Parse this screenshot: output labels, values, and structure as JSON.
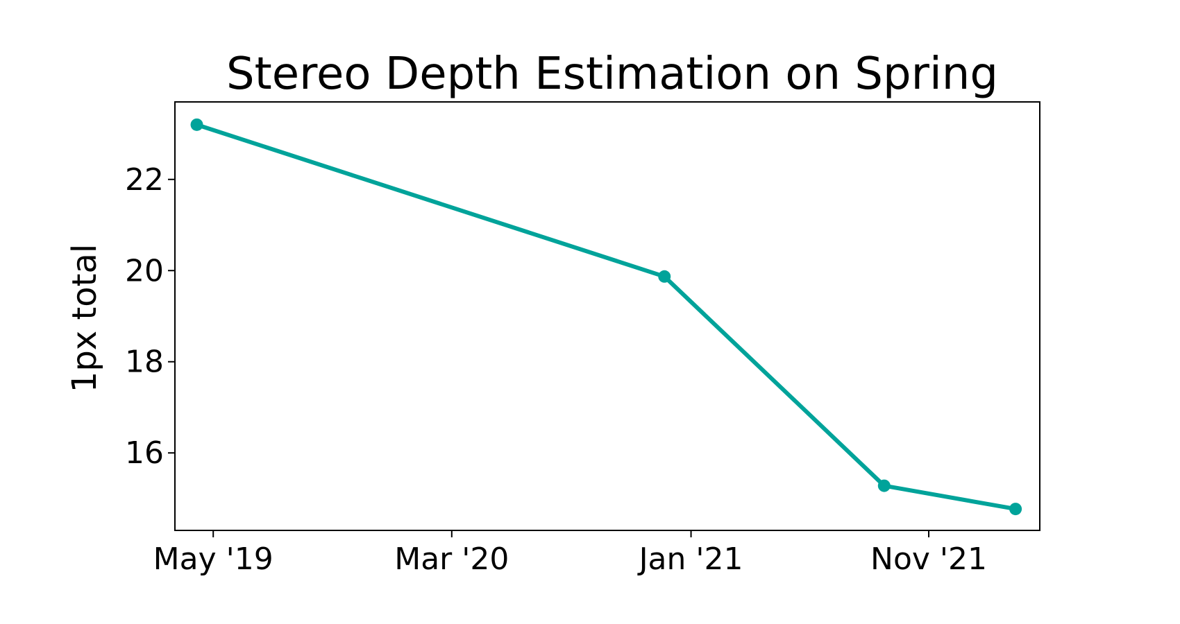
{
  "chart_data": {
    "type": "line",
    "title": "Stereo Depth Estimation on Spring",
    "xlabel": "",
    "ylabel": "1px total",
    "x": [
      "2019-04-10",
      "2020-11-28",
      "2021-09-05",
      "2022-02-20"
    ],
    "series": [
      {
        "values": [
          23.2,
          19.87,
          15.28,
          14.77
        ],
        "color": "#00a39a"
      }
    ],
    "x_ticks": [
      {
        "date": "2019-05-01",
        "label": "May '19"
      },
      {
        "date": "2020-03-01",
        "label": "Mar '20"
      },
      {
        "date": "2021-01-01",
        "label": "Jan '21"
      },
      {
        "date": "2021-11-01",
        "label": "Nov '21"
      }
    ],
    "y_ticks": [
      16,
      18,
      20,
      22
    ],
    "xlim": [
      "2019-03-13",
      "2022-03-23"
    ],
    "ylim": [
      14.3,
      23.7
    ],
    "grid": false,
    "marker": "circle"
  }
}
